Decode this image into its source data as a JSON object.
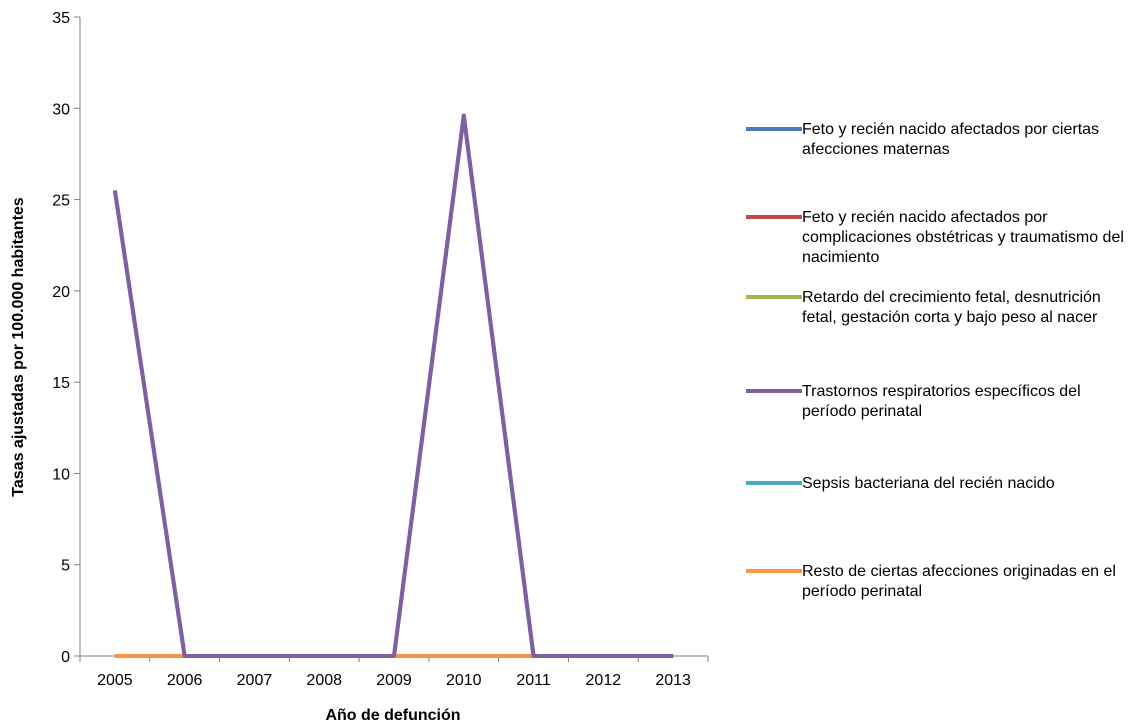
{
  "chart_data": {
    "type": "line",
    "xlabel": "Año de defunción",
    "ylabel": "Tasas ajustadas por 100.000 habitantes",
    "categories": [
      "2005",
      "2006",
      "2007",
      "2008",
      "2009",
      "2010",
      "2011",
      "2012",
      "2013"
    ],
    "ylim": [
      0,
      35
    ],
    "yticks": [
      "0",
      "5",
      "10",
      "15",
      "20",
      "25",
      "30",
      "35"
    ],
    "grid": false,
    "legend_position": "right",
    "series": [
      {
        "name": "Feto y recién nacido afectados por ciertas afecciones maternas",
        "color": "#4a7ebb",
        "values": [
          0,
          0,
          0,
          0,
          0,
          0,
          0,
          0,
          0
        ]
      },
      {
        "name": "Feto y recién nacido afectados por complicaciones obstétricas y traumatismo del nacimiento",
        "color": "#be4b48",
        "values": [
          0,
          0,
          0,
          0,
          0,
          0,
          0,
          0,
          0
        ]
      },
      {
        "name": "Retardo del crecimiento fetal, desnutrición fetal, gestación corta y bajo peso al nacer",
        "color": "#98b954",
        "values": [
          0,
          0,
          0,
          0,
          0,
          0,
          0,
          0,
          0
        ]
      },
      {
        "name": "Trastornos respiratorios específicos del período perinatal",
        "color": "#7d60a0",
        "values": [
          25.5,
          0,
          0,
          0,
          0,
          29.6,
          0,
          0,
          0
        ]
      },
      {
        "name": "Sepsis bacteriana del recién nacido",
        "color": "#46aac5",
        "values": [
          0,
          0,
          0,
          0,
          0,
          0,
          0,
          0,
          0
        ]
      },
      {
        "name": "Resto de ciertas afecciones originadas en el período perinatal",
        "color": "#f79646",
        "values": [
          0,
          0,
          0,
          0,
          0,
          0,
          0,
          0,
          0
        ]
      }
    ]
  }
}
